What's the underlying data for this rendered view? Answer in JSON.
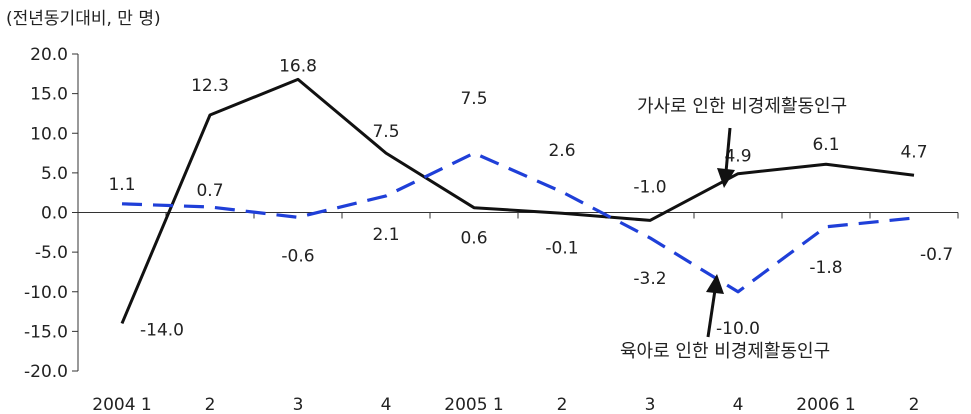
{
  "chart_data": {
    "type": "line",
    "unit_label": "(전년동기대비, 만 명)",
    "categories": [
      "2004 1",
      "2",
      "3",
      "4",
      "2005 1",
      "2",
      "3",
      "4",
      "2006 1",
      "2"
    ],
    "ylim": [
      -20,
      20
    ],
    "yticks": [
      "20.0",
      "15.0",
      "10.0",
      "5.0",
      "0.0",
      "-5.0",
      "-10.0",
      "-15.0",
      "-20.0"
    ],
    "grid": false,
    "legend": "none",
    "series": [
      {
        "name": "가사로 인한 비경제활동인구",
        "style": "solid",
        "color": "#111111",
        "values": [
          -14.0,
          12.3,
          16.8,
          7.5,
          0.6,
          -0.1,
          -1.0,
          4.9,
          6.1,
          4.7
        ],
        "labels": [
          "-14.0",
          "12.3",
          "16.8",
          "7.5",
          "0.6",
          "-0.1",
          "-1.0",
          "4.9",
          "6.1",
          "4.7"
        ]
      },
      {
        "name": "육아로 인한 비경제활동인구",
        "style": "dashed",
        "color": "#1f3fd8",
        "values": [
          1.1,
          0.7,
          -0.6,
          2.1,
          7.5,
          2.6,
          -3.2,
          -10.0,
          -1.8,
          -0.7
        ],
        "labels": [
          "1.1",
          "0.7",
          "-0.6",
          "2.1",
          "7.5",
          "2.6",
          "-3.2",
          "-10.0",
          "-1.8",
          "-0.7"
        ]
      }
    ]
  }
}
